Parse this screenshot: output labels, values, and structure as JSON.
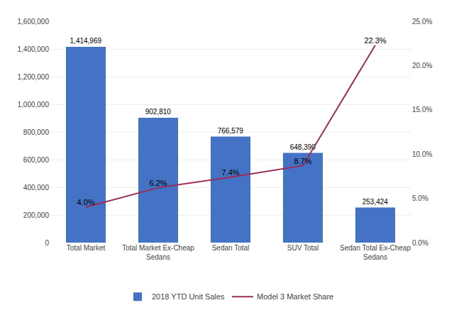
{
  "chart_data": {
    "type": "bar",
    "categories": [
      "Total Market",
      "Total Market Ex-Cheap\nSedans",
      "Sedan Total",
      "SUV Total",
      "Sedan Total Ex-Cheap\nSedans"
    ],
    "series": [
      {
        "name": "2018 YTD Unit Sales",
        "type": "bar",
        "color": "#4472C4",
        "values": [
          1414969,
          902810,
          766579,
          648390,
          253424
        ],
        "value_labels": [
          "1,414,969",
          "902,810",
          "766,579",
          "648,390",
          "253,424"
        ]
      },
      {
        "name": "Model 3 Market Share",
        "type": "line",
        "color": "#9B2C55",
        "axis": "y2",
        "values": [
          4.0,
          6.2,
          7.4,
          8.7,
          22.3
        ],
        "value_labels": [
          "4.0%",
          "6.2%",
          "7.4%",
          "8.7%",
          "22.3%"
        ]
      }
    ],
    "ylim": [
      0,
      1600000
    ],
    "yticks": [
      0,
      {
        "value": 200000,
        "label": "200,000"
      },
      {
        "value": 400000,
        "label": "400,000"
      },
      {
        "value": 600000,
        "label": "600,000"
      },
      {
        "value": 800000,
        "label": "800,000"
      },
      {
        "value": 1000000,
        "label": "1,000,000"
      },
      {
        "value": 1200000,
        "label": "1,200,000"
      },
      {
        "value": 1400000,
        "label": "1,400,000"
      },
      {
        "value": 1600000,
        "label": "1,600,000"
      }
    ],
    "y2lim": [
      0.0,
      25.0
    ],
    "y2ticks": [
      {
        "value": 0.0,
        "label": "0.0%"
      },
      {
        "value": 5.0,
        "label": "5.0%"
      },
      {
        "value": 10.0,
        "label": "10.0%"
      },
      {
        "value": 15.0,
        "label": "15.0%"
      },
      {
        "value": 20.0,
        "label": "20.0%"
      },
      {
        "value": 25.0,
        "label": "25.0%"
      }
    ],
    "grid": true,
    "legend": "bottom",
    "data_labels": true
  }
}
